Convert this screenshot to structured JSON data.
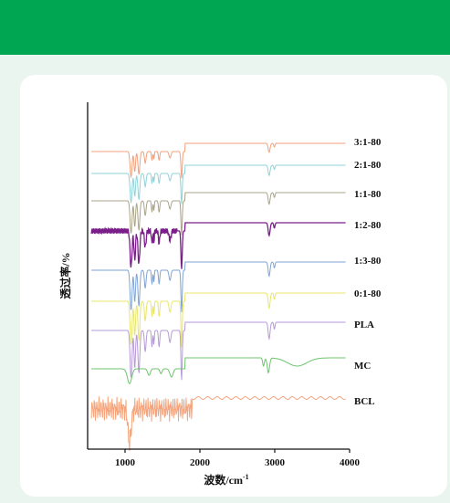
{
  "chart_data": {
    "type": "line",
    "title": "",
    "xlabel": "波数/cm",
    "xlabel_sup": "-1",
    "ylabel": "透过率/%",
    "xlim": [
      500,
      4000
    ],
    "xticks": [
      1000,
      2000,
      3000,
      4000
    ],
    "grid": false,
    "series": [
      {
        "name": "3:1-80",
        "color": "#f2a07b"
      },
      {
        "name": "2:1-80",
        "color": "#8fd3d8"
      },
      {
        "name": "1:1-80",
        "color": "#a9a488"
      },
      {
        "name": "1:2-80",
        "color": "#7a1f8a"
      },
      {
        "name": "1:3-80",
        "color": "#7fa3d6"
      },
      {
        "name": "0:1-80",
        "color": "#e8e66b"
      },
      {
        "name": "PLA",
        "color": "#b69ad8"
      },
      {
        "name": "MC",
        "color": "#6cc56c"
      },
      {
        "name": "BCL",
        "color": "#f4a57e"
      }
    ]
  }
}
